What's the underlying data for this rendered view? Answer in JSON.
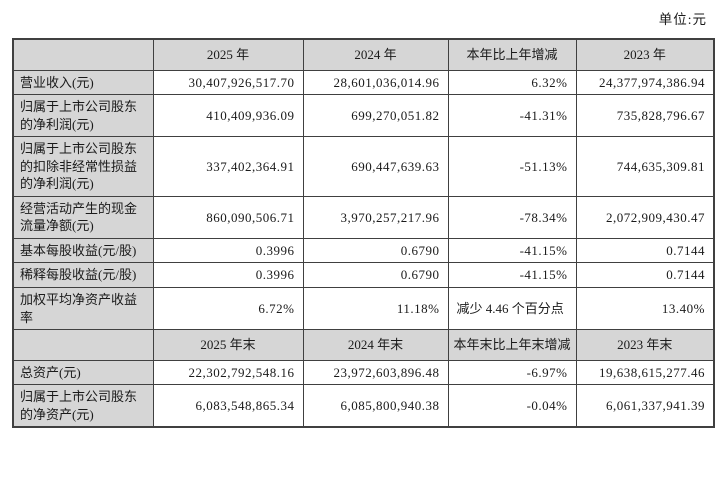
{
  "unit_label": "单位:元",
  "table": {
    "rows": [
      {
        "type": "header",
        "cells": [
          "",
          "2025 年",
          "2024 年",
          "本年比上年增减",
          "2023 年"
        ]
      },
      {
        "type": "data",
        "cells": [
          "营业收入(元)",
          "30,407,926,517.70",
          "28,601,036,014.96",
          "6.32%",
          "24,377,974,386.94"
        ]
      },
      {
        "type": "data",
        "cells": [
          "归属于上市公司股东的净利润(元)",
          "410,409,936.09",
          "699,270,051.82",
          "-41.31%",
          "735,828,796.67"
        ]
      },
      {
        "type": "data",
        "cells": [
          "归属于上市公司股东的扣除非经常性损益的净利润(元)",
          "337,402,364.91",
          "690,447,639.63",
          "-51.13%",
          "744,635,309.81"
        ]
      },
      {
        "type": "data",
        "cells": [
          "经营活动产生的现金流量净额(元)",
          "860,090,506.71",
          "3,970,257,217.96",
          "-78.34%",
          "2,072,909,430.47"
        ]
      },
      {
        "type": "data",
        "cells": [
          "基本每股收益(元/股)",
          "0.3996",
          "0.6790",
          "-41.15%",
          "0.7144"
        ]
      },
      {
        "type": "data",
        "cells": [
          "稀释每股收益(元/股)",
          "0.3996",
          "0.6790",
          "-41.15%",
          "0.7144"
        ]
      },
      {
        "type": "data",
        "change_align": "left",
        "cells": [
          "加权平均净资产收益率",
          "6.72%",
          "11.18%",
          "减少 4.46 个百分点",
          "13.40%"
        ]
      },
      {
        "type": "header",
        "cells": [
          "",
          "2025 年末",
          "2024 年末",
          "本年末比上年末增减",
          "2023 年末"
        ]
      },
      {
        "type": "data",
        "cells": [
          "总资产(元)",
          "22,302,792,548.16",
          "23,972,603,896.48",
          "-6.97%",
          "19,638,615,277.46"
        ]
      },
      {
        "type": "data",
        "cells": [
          "归属于上市公司股东的净资产(元)",
          "6,083,548,865.34",
          "6,085,800,940.38",
          "-0.04%",
          "6,061,337,941.39"
        ]
      }
    ]
  }
}
